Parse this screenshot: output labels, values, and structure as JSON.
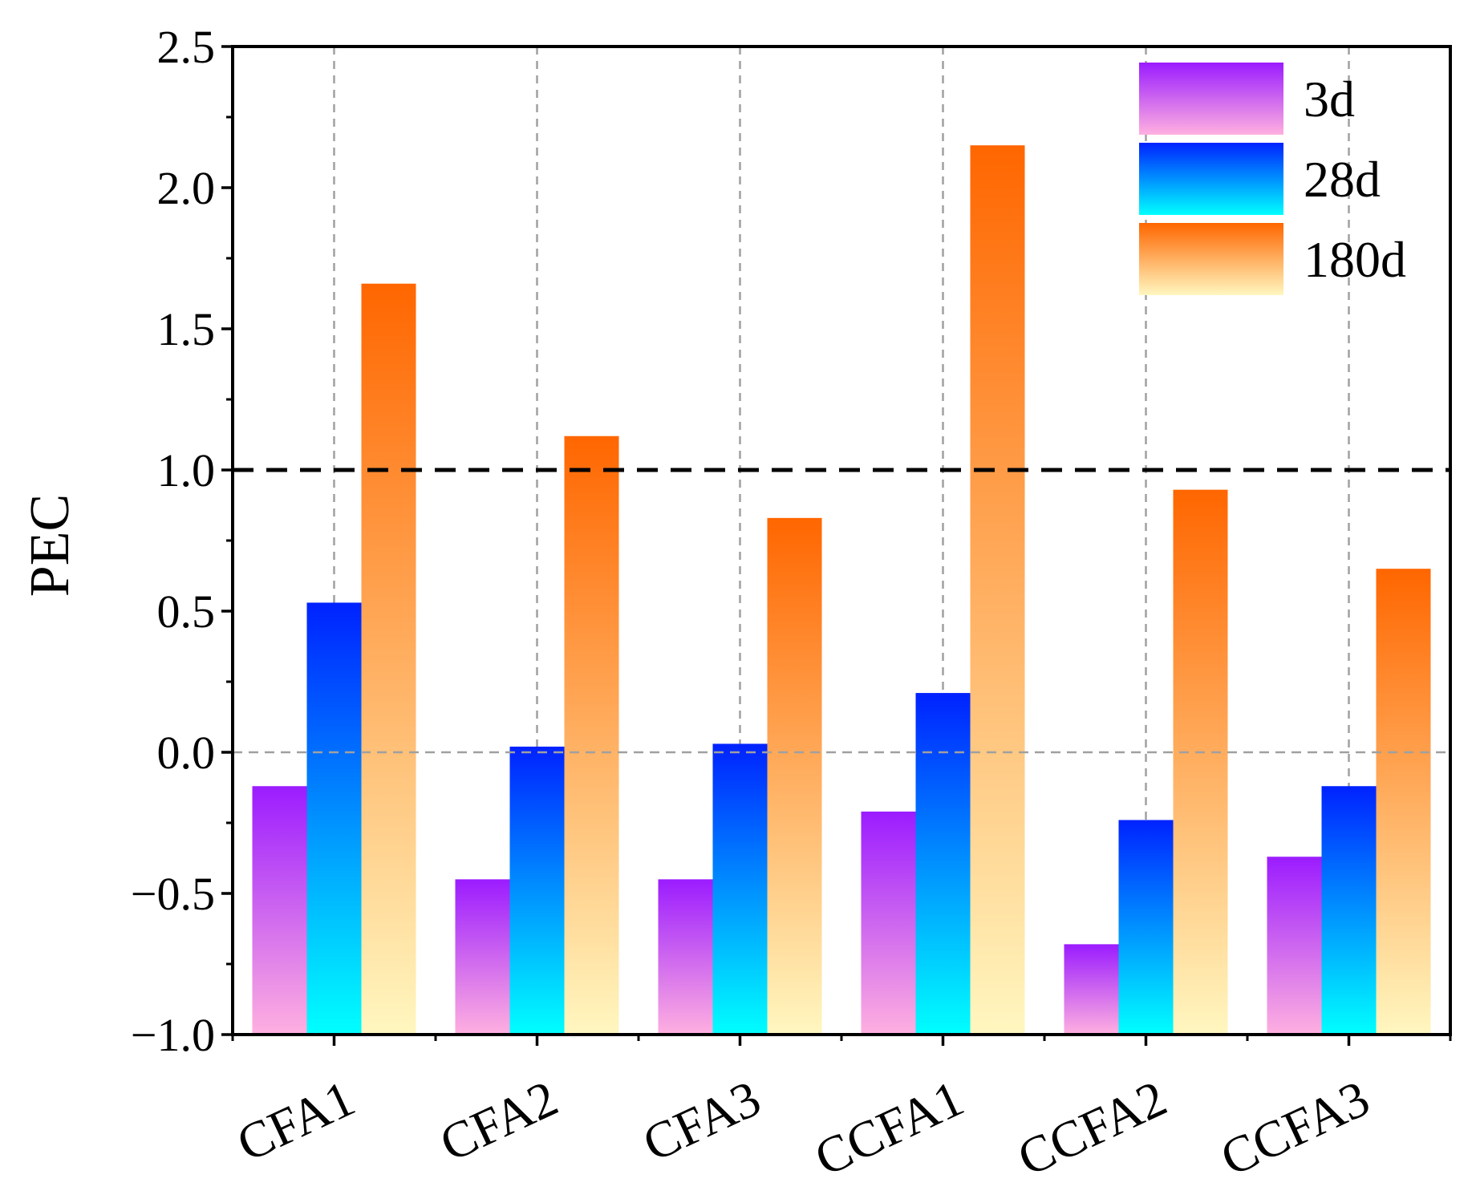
{
  "chart_data": {
    "type": "bar",
    "title": "",
    "xlabel": "",
    "ylabel": "PEC",
    "ylim": [
      -1.0,
      2.5
    ],
    "yticks": [
      -1.0,
      -0.5,
      0.0,
      0.5,
      1.0,
      1.5,
      2.0,
      2.5
    ],
    "ytick_labels": [
      "−1.0",
      "−0.5",
      "0.0",
      "0.5",
      "1.0",
      "1.5",
      "2.0",
      "2.5"
    ],
    "categories": [
      "CFA1",
      "CFA2",
      "CFA3",
      "CCFA1",
      "CCFA2",
      "CCFA3"
    ],
    "series": [
      {
        "name": "3d",
        "values": [
          -0.12,
          -0.45,
          -0.45,
          -0.21,
          -0.68,
          -0.37
        ],
        "gradient": [
          "#9b1cff",
          "#ffb0e0"
        ]
      },
      {
        "name": "28d",
        "values": [
          0.53,
          0.02,
          0.03,
          0.21,
          -0.24,
          -0.12
        ],
        "gradient": [
          "#0022ff",
          "#00ffff"
        ]
      },
      {
        "name": "180d",
        "values": [
          1.66,
          1.12,
          0.83,
          2.15,
          0.93,
          0.65
        ],
        "gradient": [
          "#ff6600",
          "#fff7c0"
        ]
      }
    ],
    "reference_line": 1.0,
    "zero_line": 0.0,
    "grid": true,
    "legend_position": "top-right"
  }
}
